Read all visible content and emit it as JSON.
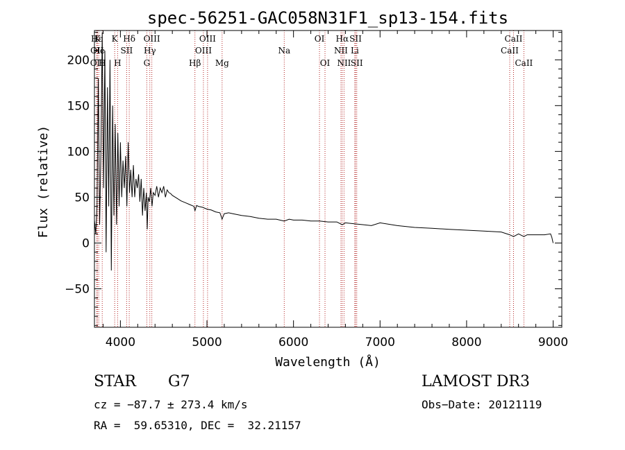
{
  "chart_data": {
    "type": "line",
    "title": "spec-56251-GAC058N31F1_sp13-154.fits",
    "xlabel": "Wavelength (Å)",
    "ylabel": "Flux (relative)",
    "xlim": [
      3700,
      9100
    ],
    "ylim": [
      -92,
      232
    ],
    "xticks": [
      4000,
      5000,
      6000,
      7000,
      8000,
      9000
    ],
    "xtick_labels": [
      "4000",
      "5000",
      "6000",
      "7000",
      "8000",
      "9000"
    ],
    "yticks": [
      -50,
      0,
      50,
      100,
      150,
      200
    ],
    "ytick_labels": [
      "−50",
      "0",
      "50",
      "100",
      "150",
      "200"
    ],
    "series": [
      {
        "name": "spectrum",
        "x": [
          3700,
          3715,
          3730,
          3745,
          3760,
          3775,
          3790,
          3805,
          3820,
          3835,
          3850,
          3865,
          3880,
          3895,
          3910,
          3925,
          3940,
          3955,
          3970,
          3985,
          4000,
          4015,
          4030,
          4045,
          4060,
          4075,
          4090,
          4105,
          4120,
          4135,
          4150,
          4165,
          4180,
          4195,
          4210,
          4225,
          4240,
          4255,
          4270,
          4285,
          4300,
          4310,
          4320,
          4335,
          4350,
          4365,
          4380,
          4400,
          4420,
          4440,
          4460,
          4480,
          4500,
          4520,
          4540,
          4560,
          4580,
          4600,
          4650,
          4700,
          4750,
          4800,
          4850,
          4861,
          4880,
          4900,
          4950,
          5000,
          5050,
          5100,
          5150,
          5175,
          5200,
          5250,
          5300,
          5400,
          5500,
          5600,
          5700,
          5800,
          5893,
          5950,
          6000,
          6100,
          6200,
          6300,
          6400,
          6500,
          6563,
          6600,
          6700,
          6800,
          6900,
          7000,
          7200,
          7400,
          7600,
          7800,
          8000,
          8200,
          8400,
          8498,
          8542,
          8600,
          8662,
          8700,
          8800,
          8900,
          8970,
          8985,
          9000
        ],
        "y": [
          25,
          10,
          40,
          180,
          20,
          100,
          230,
          60,
          210,
          -10,
          170,
          40,
          200,
          -30,
          150,
          30,
          130,
          20,
          120,
          40,
          110,
          50,
          90,
          60,
          95,
          40,
          110,
          55,
          80,
          50,
          85,
          50,
          70,
          60,
          75,
          45,
          70,
          30,
          60,
          35,
          55,
          15,
          50,
          45,
          60,
          40,
          55,
          52,
          62,
          50,
          60,
          55,
          62,
          50,
          58,
          55,
          54,
          52,
          49,
          46,
          44,
          42,
          40,
          35,
          41,
          40,
          39,
          37,
          36,
          34,
          33,
          26,
          32,
          33,
          32,
          30,
          29,
          27,
          26,
          26,
          24,
          26,
          25,
          25,
          24,
          24,
          23,
          23,
          20,
          22,
          21,
          20,
          19,
          22,
          19,
          17,
          16,
          15,
          14,
          13,
          12,
          9,
          7,
          10,
          7,
          9,
          9,
          9,
          10,
          6,
          0
        ]
      }
    ],
    "line_markers": [
      {
        "label": "Hε",
        "wl": 3727,
        "row": 1
      },
      {
        "label": "K",
        "wl": 3734,
        "row": 1
      },
      {
        "label": "OII",
        "wl": 3727,
        "row": 3
      },
      {
        "label": "OII",
        "wl": 3730,
        "row": 2
      },
      {
        "label": "He",
        "wl": 3750,
        "row": 2
      },
      {
        "label": "H",
        "wl": 3790,
        "row": 3
      },
      {
        "label": "K",
        "wl": 3934,
        "row": 1
      },
      {
        "label": "H",
        "wl": 3968,
        "row": 3
      },
      {
        "label": "Hδ",
        "wl": 4102,
        "row": 1
      },
      {
        "label": "SII",
        "wl": 4072,
        "row": 2
      },
      {
        "label": "OIII",
        "wl": 4363,
        "row": 1
      },
      {
        "label": "Hγ",
        "wl": 4340,
        "row": 2
      },
      {
        "label": "G",
        "wl": 4305,
        "row": 3
      },
      {
        "label": "Hβ",
        "wl": 4861,
        "row": 3
      },
      {
        "label": "OIII",
        "wl": 5007,
        "row": 1
      },
      {
        "label": "OIII",
        "wl": 4959,
        "row": 2
      },
      {
        "label": "Mg",
        "wl": 5175,
        "row": 3
      },
      {
        "label": "Na",
        "wl": 5893,
        "row": 2
      },
      {
        "label": "OI",
        "wl": 6300,
        "row": 1
      },
      {
        "label": "OI",
        "wl": 6364,
        "row": 3
      },
      {
        "label": "Hα",
        "wl": 6563,
        "row": 1
      },
      {
        "label": "NII",
        "wl": 6548,
        "row": 2
      },
      {
        "label": "NII",
        "wl": 6584,
        "row": 3
      },
      {
        "label": "SII",
        "wl": 6717,
        "row": 1
      },
      {
        "label": "Li",
        "wl": 6708,
        "row": 2
      },
      {
        "label": "SII",
        "wl": 6731,
        "row": 3
      },
      {
        "label": "CaII",
        "wl": 8542,
        "row": 1
      },
      {
        "label": "CaII",
        "wl": 8498,
        "row": 2
      },
      {
        "label": "CaII",
        "wl": 8662,
        "row": 3
      }
    ],
    "marker_color": "#b22222",
    "line_color": "#000000"
  },
  "info": {
    "object_class": "STAR",
    "subclass": "G7",
    "survey": "LAMOST DR3",
    "cz": "cz = −87.7 ± 273.4 km/s",
    "obs_date": "Obs−Date: 20121119",
    "coords": "RA =  59.65310, DEC =  32.21157"
  }
}
